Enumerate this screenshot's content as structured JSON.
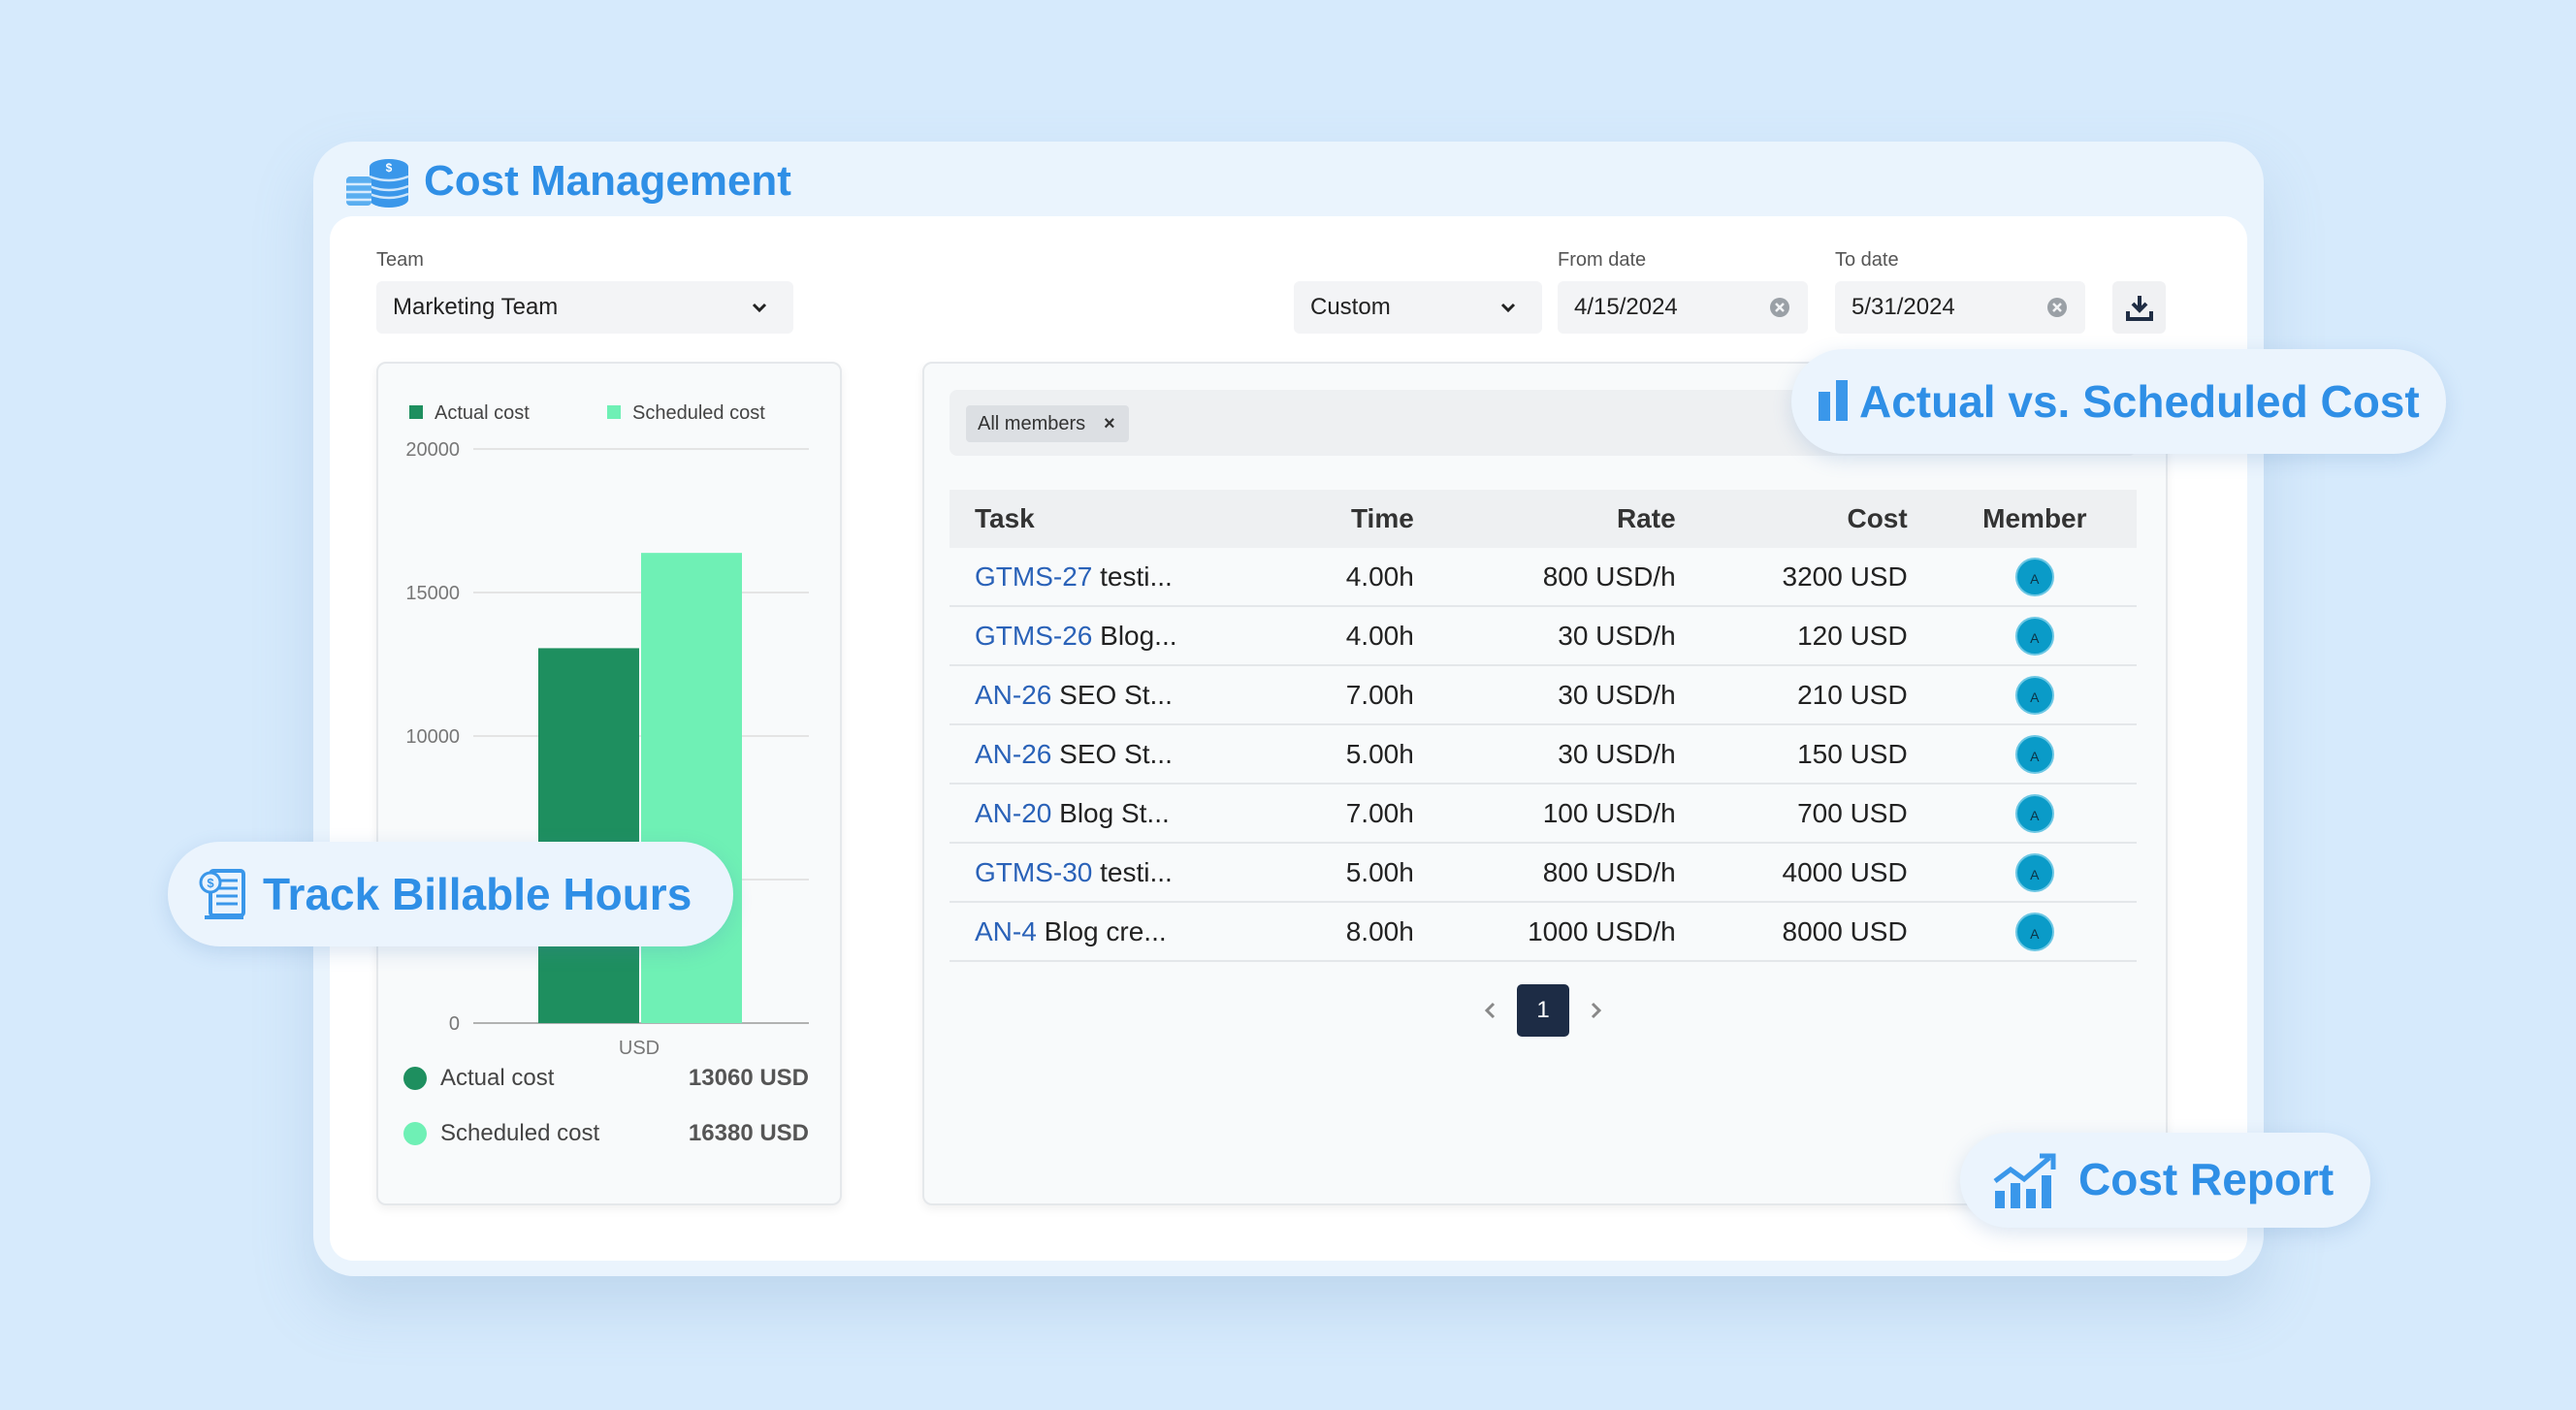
{
  "app": {
    "title": "Cost Management"
  },
  "filters": {
    "team_label": "Team",
    "team_value": "Marketing Team",
    "range_value": "Custom",
    "from_label": "From date",
    "from_value": "4/15/2024",
    "to_label": "To date",
    "to_value": "5/31/2024"
  },
  "chart_data": {
    "type": "bar",
    "categories": [
      "USD"
    ],
    "series": [
      {
        "name": "Actual cost",
        "values": [
          13060
        ],
        "color": "#1e8f5f"
      },
      {
        "name": "Scheduled cost",
        "values": [
          16380
        ],
        "color": "#6ff0b5"
      }
    ],
    "ylim": [
      0,
      20000
    ],
    "yticks": [
      "0",
      "10000",
      "15000",
      "20000"
    ],
    "legend": "top"
  },
  "summary": [
    {
      "label": "Actual cost",
      "value": "13060 USD",
      "color": "#1e8f5f"
    },
    {
      "label": "Scheduled cost",
      "value": "16380 USD",
      "color": "#6ff0b5"
    }
  ],
  "chip": {
    "label": "All members",
    "close": "×"
  },
  "table": {
    "headers": {
      "task": "Task",
      "time": "Time",
      "rate": "Rate",
      "cost": "Cost",
      "member": "Member"
    },
    "rows": [
      {
        "key": "GTMS-27",
        "name": "testi...",
        "time": "4.00h",
        "rate": "800 USD/h",
        "cost": "3200 USD",
        "member": "A"
      },
      {
        "key": "GTMS-26",
        "name": "Blog...",
        "time": "4.00h",
        "rate": "30 USD/h",
        "cost": "120 USD",
        "member": "A"
      },
      {
        "key": "AN-26",
        "name": "SEO St...",
        "time": "7.00h",
        "rate": "30 USD/h",
        "cost": "210 USD",
        "member": "A"
      },
      {
        "key": "AN-26",
        "name": "SEO St...",
        "time": "5.00h",
        "rate": "30 USD/h",
        "cost": "150 USD",
        "member": "A"
      },
      {
        "key": "AN-20",
        "name": "Blog St...",
        "time": "7.00h",
        "rate": "100 USD/h",
        "cost": "700 USD",
        "member": "A"
      },
      {
        "key": "GTMS-30",
        "name": "testi...",
        "time": "5.00h",
        "rate": "800 USD/h",
        "cost": "4000 USD",
        "member": "A"
      },
      {
        "key": "AN-4",
        "name": "Blog cre...",
        "time": "8.00h",
        "rate": "1000 USD/h",
        "cost": "8000 USD",
        "member": "A"
      }
    ]
  },
  "pagination": {
    "current": "1"
  },
  "badges": {
    "actual_vs_scheduled": "Actual vs. Scheduled Cost",
    "track_hours": "Track Billable Hours",
    "cost_report": "Cost Report"
  },
  "icons": {
    "app": "coins-icon",
    "dropdown": "chevron-down-icon",
    "clear": "clear-circle-icon",
    "download": "download-icon",
    "chart": "bar-chart-icon",
    "receipt": "receipt-icon",
    "report": "trend-chart-icon"
  }
}
